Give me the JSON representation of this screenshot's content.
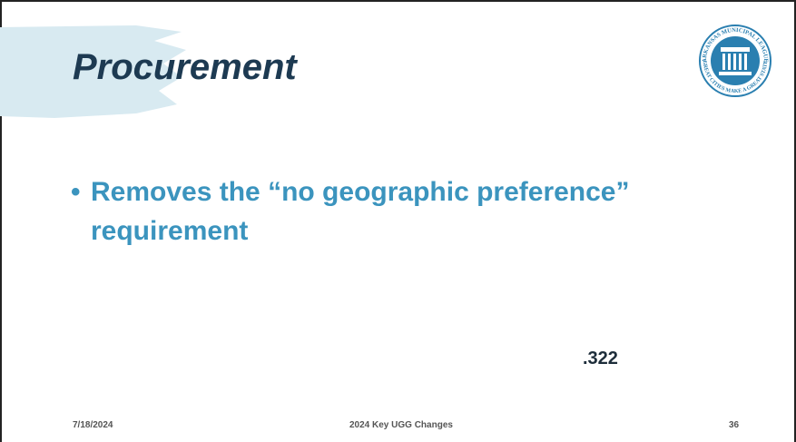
{
  "slide": {
    "title": "Procurement",
    "bullets": [
      "Removes the “no geographic preference” requirement"
    ],
    "section_ref": ".322",
    "logo": {
      "top_text": "ARKANSAS MUNICIPAL LEAGUE",
      "bottom_text": "GREAT CITIES MAKE A GREAT STATE"
    },
    "footer": {
      "date": "7/18/2024",
      "center": "2024 Key UGG Changes",
      "page": "36"
    }
  }
}
